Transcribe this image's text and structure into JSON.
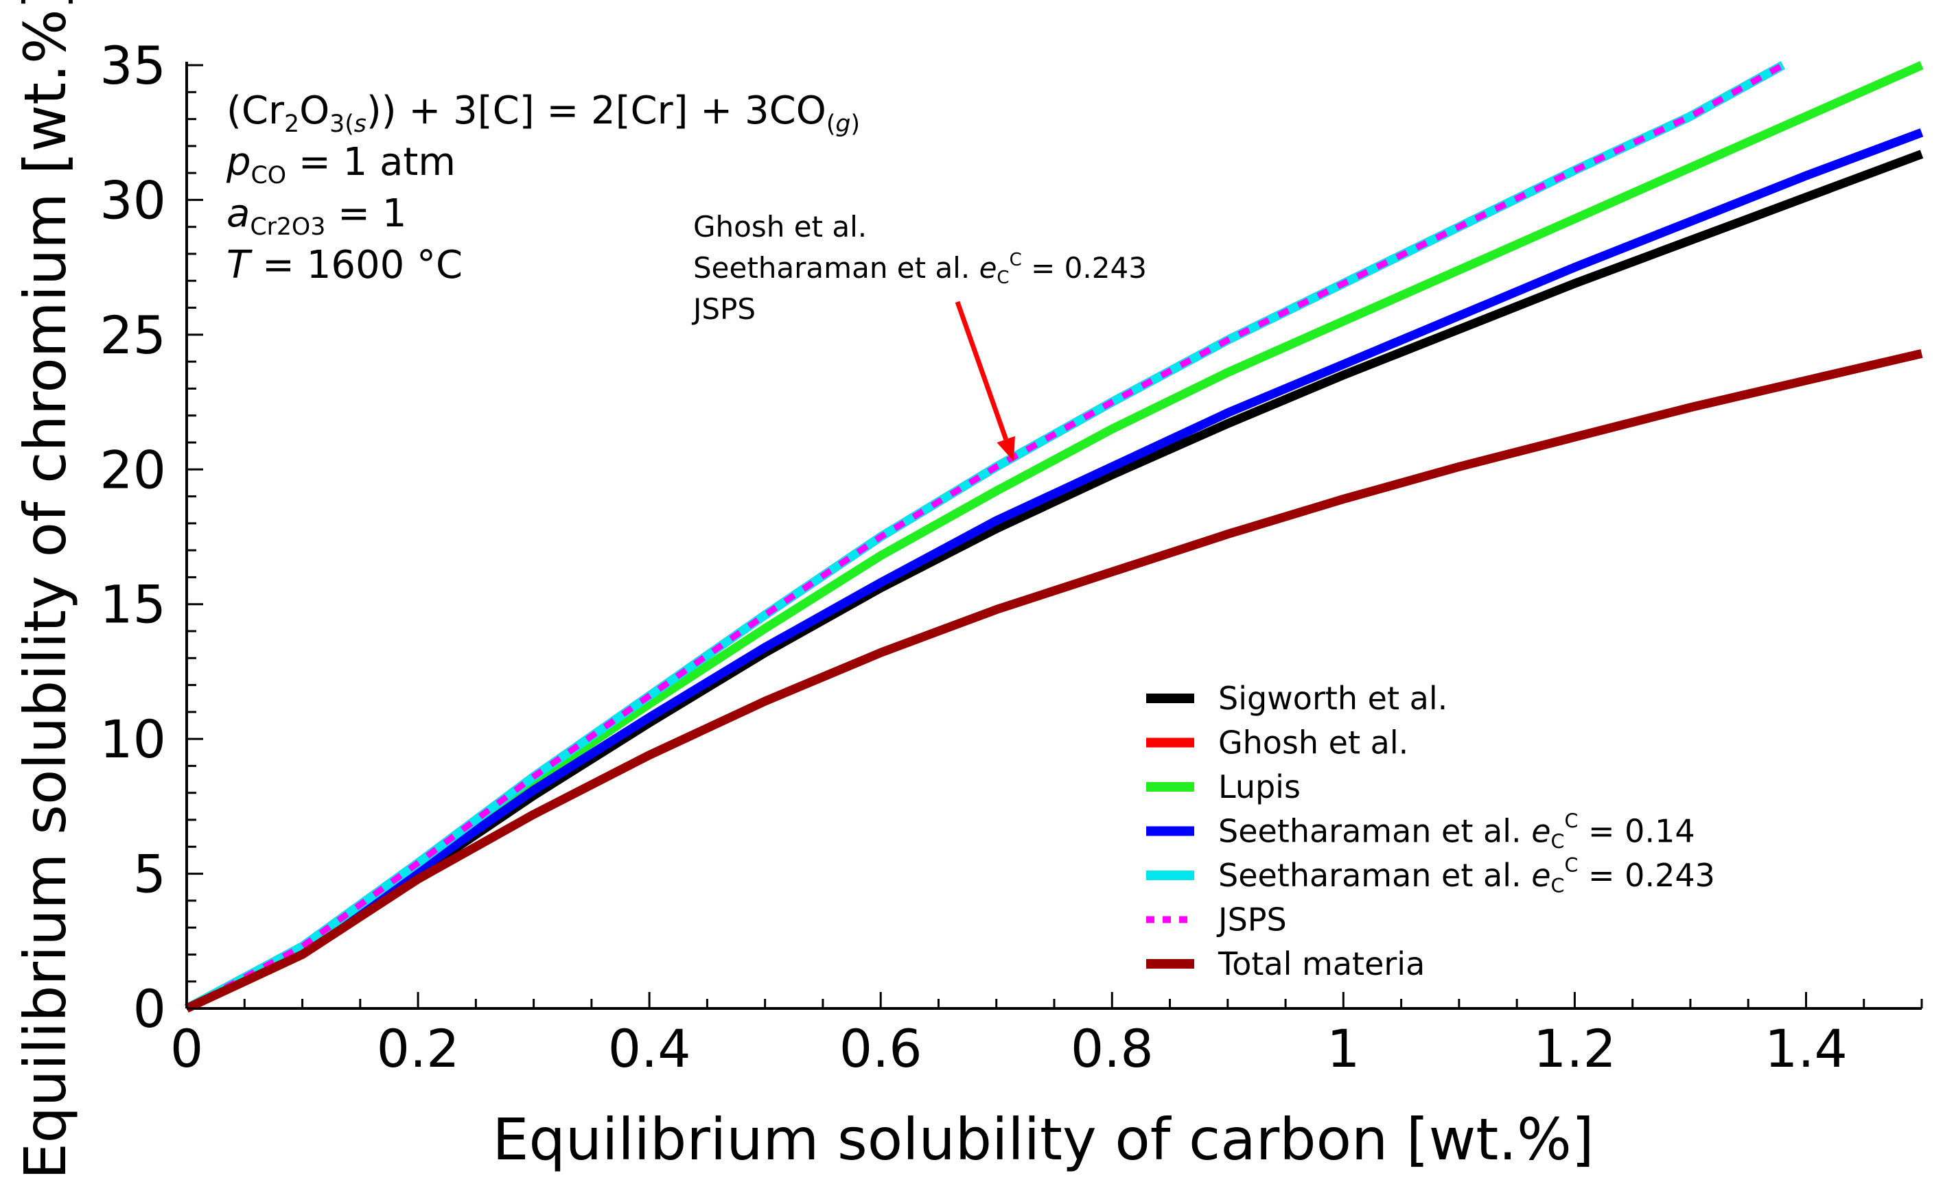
{
  "chart_data": {
    "type": "line",
    "xlabel": "Equilibrium solubility of carbon [wt.%]",
    "ylabel": "Equilibrium solubility of chromium [wt.%]",
    "xlim": [
      0,
      1.5
    ],
    "ylim": [
      0,
      35
    ],
    "x_ticks": [
      "0",
      "0.2",
      "0.4",
      "0.6",
      "0.8",
      "1",
      "1.2",
      "1.4"
    ],
    "y_ticks": [
      "0",
      "5",
      "10",
      "15",
      "20",
      "25",
      "30",
      "35"
    ],
    "grid": false,
    "legend_position": "bottom-right",
    "series": [
      {
        "name": "Sigworth et al.",
        "color": "#000000",
        "style": "solid",
        "x": [
          0,
          0.1,
          0.2,
          0.3,
          0.4,
          0.5,
          0.6,
          0.7,
          0.8,
          0.9,
          1.0,
          1.1,
          1.2,
          1.3,
          1.4,
          1.5
        ],
        "y": [
          0,
          2.1,
          5.0,
          7.9,
          10.6,
          13.2,
          15.6,
          17.8,
          19.8,
          21.7,
          23.5,
          25.2,
          26.9,
          28.5,
          30.1,
          31.7
        ]
      },
      {
        "name": "Ghosh et al.",
        "color": "#ff0000",
        "style": "solid",
        "x": [
          0,
          0.1,
          0.2,
          0.3,
          0.4,
          0.5,
          0.6,
          0.7,
          0.8,
          0.9,
          1.0,
          1.1,
          1.2,
          1.3,
          1.38
        ],
        "y": [
          0,
          2.3,
          5.4,
          8.6,
          11.6,
          14.6,
          17.5,
          20.1,
          22.5,
          24.8,
          26.9,
          29.0,
          31.1,
          33.1,
          35.0
        ]
      },
      {
        "name": "Lupis",
        "color": "#22ee22",
        "style": "solid",
        "x": [
          0,
          0.1,
          0.2,
          0.3,
          0.4,
          0.5,
          0.6,
          0.7,
          0.8,
          0.9,
          1.0,
          1.1,
          1.2,
          1.3,
          1.4,
          1.5
        ],
        "y": [
          0,
          2.2,
          5.3,
          8.4,
          11.3,
          14.1,
          16.8,
          19.2,
          21.5,
          23.6,
          25.5,
          27.4,
          29.3,
          31.2,
          33.1,
          35.0
        ]
      },
      {
        "name": "Seetharaman et al. e_C^C = 0.14",
        "color": "#0000ff",
        "style": "solid",
        "x": [
          0,
          0.1,
          0.2,
          0.3,
          0.4,
          0.5,
          0.6,
          0.7,
          0.8,
          0.9,
          1.0,
          1.1,
          1.2,
          1.3,
          1.4,
          1.5
        ],
        "y": [
          0,
          2.1,
          5.1,
          8.1,
          10.8,
          13.4,
          15.8,
          18.1,
          20.1,
          22.1,
          23.9,
          25.7,
          27.5,
          29.2,
          30.9,
          32.5
        ]
      },
      {
        "name": "Seetharaman et al. e_C^C = 0.243",
        "color": "#00e5ee",
        "style": "solid",
        "x": [
          0,
          0.1,
          0.2,
          0.3,
          0.4,
          0.5,
          0.6,
          0.7,
          0.8,
          0.9,
          1.0,
          1.1,
          1.2,
          1.3,
          1.38
        ],
        "y": [
          0,
          2.3,
          5.4,
          8.6,
          11.6,
          14.6,
          17.5,
          20.1,
          22.5,
          24.8,
          26.9,
          29.0,
          31.1,
          33.1,
          35.0
        ]
      },
      {
        "name": "JSPS",
        "color": "#ff00ff",
        "style": "dotted",
        "x": [
          0,
          0.1,
          0.2,
          0.3,
          0.4,
          0.5,
          0.6,
          0.7,
          0.8,
          0.9,
          1.0,
          1.1,
          1.2,
          1.3,
          1.38
        ],
        "y": [
          0,
          2.3,
          5.4,
          8.6,
          11.6,
          14.6,
          17.5,
          20.1,
          22.5,
          24.8,
          26.9,
          29.0,
          31.1,
          33.1,
          35.0
        ]
      },
      {
        "name": "Total materia",
        "color": "#9b0000",
        "style": "solid",
        "x": [
          0,
          0.1,
          0.2,
          0.3,
          0.4,
          0.5,
          0.6,
          0.7,
          0.8,
          0.9,
          1.0,
          1.1,
          1.2,
          1.3,
          1.4,
          1.5
        ],
        "y": [
          0,
          2.0,
          4.8,
          7.2,
          9.4,
          11.4,
          13.2,
          14.8,
          16.2,
          17.6,
          18.9,
          20.1,
          21.2,
          22.3,
          23.3,
          24.3
        ]
      }
    ],
    "legend": [
      {
        "label": "Sigworth et al.",
        "sup": null,
        "tail": null
      },
      {
        "label": "Ghosh et al.",
        "sup": null,
        "tail": null
      },
      {
        "label": "Lupis",
        "sup": null,
        "tail": null
      },
      {
        "label": "Seetharaman et al.",
        "e": "e",
        "sub": "C",
        "sup": "C",
        "tail": " = 0.14"
      },
      {
        "label": "Seetharaman et al.",
        "e": "e",
        "sub": "C",
        "sup": "C",
        "tail": " = 0.243"
      },
      {
        "label": "JSPS",
        "sup": null,
        "tail": null
      },
      {
        "label": "Total materia",
        "sup": null,
        "tail": null
      }
    ],
    "annotations": {
      "reaction": {
        "open": "(Cr",
        "sub2": "2",
        "o": "O",
        "sub3": "3(",
        "s": "s",
        "close": ")) + 3[C] = 2[Cr] + 3CO",
        "g_open": "(",
        "g": "g",
        "g_close": ")"
      },
      "pco": {
        "p": "p",
        "sub": "CO",
        "rest": " = 1 atm"
      },
      "acr": {
        "a": "a",
        "sub": "Cr2O3",
        "rest": " = 1"
      },
      "temp": {
        "t": "T",
        "rest": " = 1600 °C"
      },
      "arrow_label": {
        "line1": "Ghosh et al.",
        "line2": "Seetharaman et al. ",
        "e": "e",
        "sub": "C",
        "sup": "C",
        "tail": " = 0.243",
        "line3": "JSPS"
      },
      "arrow_color": "#ff0000",
      "arrow_target": {
        "x": 0.715,
        "y": 20.3
      }
    }
  }
}
